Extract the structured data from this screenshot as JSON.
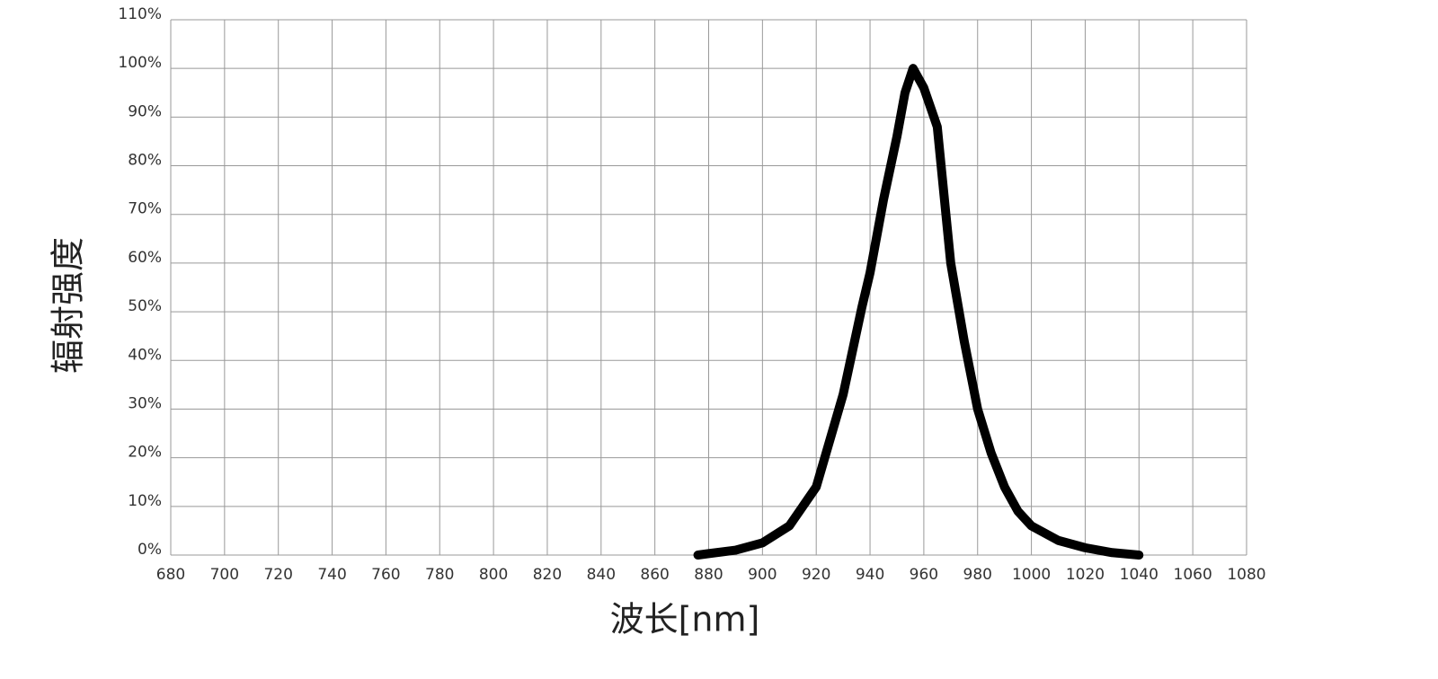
{
  "chart_data": {
    "type": "line",
    "x_label": "波长[nm]",
    "y_label": "辐射强度",
    "x": [
      876,
      880,
      890,
      900,
      910,
      920,
      930,
      937,
      940,
      945,
      950,
      953,
      956,
      960,
      965,
      970,
      975,
      980,
      985,
      990,
      995,
      1000,
      1010,
      1020,
      1030,
      1040
    ],
    "series": [
      {
        "name": null,
        "color": "#000000",
        "values": [
          0,
          0.3,
          1,
          2.5,
          6,
          14,
          33,
          51,
          58,
          73,
          86,
          95,
          100,
          96,
          88,
          60,
          44,
          30,
          21,
          14,
          9,
          6,
          3,
          1.5,
          0.5,
          0
        ]
      }
    ],
    "xlim": [
      680,
      1080
    ],
    "xticks": [
      680,
      700,
      720,
      740,
      760,
      780,
      800,
      820,
      840,
      860,
      880,
      900,
      920,
      940,
      960,
      980,
      1000,
      1020,
      1040,
      1060,
      1080
    ],
    "ylim": [
      0,
      110
    ],
    "yticks": [
      {
        "value": 0,
        "label": "0%"
      },
      {
        "value": 10,
        "label": "10%"
      },
      {
        "value": 20,
        "label": "20%"
      },
      {
        "value": 30,
        "label": "30%"
      },
      {
        "value": 40,
        "label": "40%"
      },
      {
        "value": 50,
        "label": "50%"
      },
      {
        "value": 60,
        "label": "60%"
      },
      {
        "value": 70,
        "label": "70%"
      },
      {
        "value": 80,
        "label": "80%"
      },
      {
        "value": 90,
        "label": "90%"
      },
      {
        "value": 100,
        "label": "100%"
      },
      {
        "value": 110,
        "label": "110%"
      }
    ],
    "grid": true
  }
}
